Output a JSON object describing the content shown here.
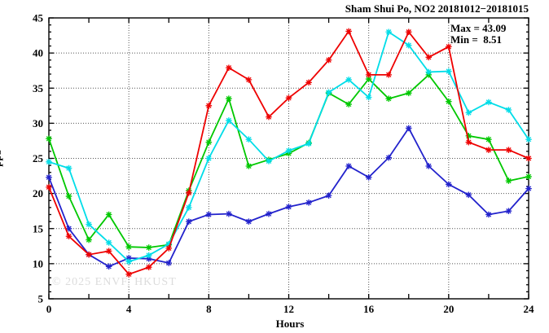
{
  "chart_data": {
    "type": "line",
    "title": "Sham Shui Po, NO2 20181012−20181015",
    "xlabel": "Hours",
    "ylabel": "ppb",
    "xlim": [
      0,
      24
    ],
    "ylim": [
      5,
      45
    ],
    "xticks_labeled": [
      0,
      4,
      8,
      12,
      16,
      20,
      24
    ],
    "xtick_minor_step": 2,
    "yticks_labeled": [
      5,
      10,
      15,
      20,
      25,
      30,
      35,
      40,
      45
    ],
    "ytick_minor_step": 1,
    "x_gridlines": [
      4,
      8,
      12,
      16,
      20
    ],
    "y_gridlines": [
      10,
      15,
      20,
      25,
      30,
      35,
      40
    ],
    "grid": "dotted",
    "legend": "none",
    "x": [
      0,
      1,
      2,
      3,
      4,
      5,
      6,
      7,
      8,
      9,
      10,
      11,
      12,
      13,
      14,
      15,
      16,
      17,
      18,
      19,
      20,
      21,
      22,
      23,
      24
    ],
    "series": [
      {
        "name": "blue",
        "color": "#2222cc",
        "values": [
          22.3,
          15.0,
          11.3,
          9.6,
          10.8,
          10.7,
          10.1,
          16.0,
          17.0,
          17.1,
          16.0,
          17.1,
          18.1,
          18.7,
          19.7,
          23.9,
          22.3,
          25.1,
          29.3,
          23.9,
          21.3,
          19.8,
          17.0,
          17.5,
          20.7
        ]
      },
      {
        "name": "green",
        "color": "#00c800",
        "values": [
          27.8,
          19.6,
          13.4,
          17.0,
          12.4,
          12.3,
          12.7,
          20.4,
          27.3,
          33.5,
          23.9,
          24.8,
          25.7,
          27.2,
          34.3,
          32.7,
          36.3,
          33.5,
          34.3,
          36.9,
          33.1,
          28.2,
          27.7,
          21.8,
          22.4
        ]
      },
      {
        "name": "cyan",
        "color": "#00dde8",
        "values": [
          24.5,
          23.6,
          15.6,
          13.0,
          10.3,
          11.2,
          12.8,
          18.0,
          25.0,
          30.4,
          27.7,
          24.6,
          26.1,
          27.1,
          34.4,
          36.2,
          33.7,
          43.0,
          41.1,
          37.3,
          37.4,
          31.5,
          33.0,
          31.9,
          27.7
        ]
      },
      {
        "name": "red",
        "color": "#ee0000",
        "values": [
          20.9,
          13.9,
          11.3,
          11.8,
          8.5,
          9.5,
          12.2,
          20.1,
          32.5,
          37.9,
          36.2,
          30.9,
          33.6,
          35.8,
          39.0,
          43.1,
          36.9,
          36.9,
          43.0,
          39.4,
          40.9,
          27.3,
          26.2,
          26.2,
          25.0
        ]
      }
    ],
    "annotations": {
      "max_label": "Max = 43.09",
      "min_label": "Min =  8.51"
    },
    "watermark": "© 2025 ENVF, HKUST",
    "stats": {
      "max": 43.09,
      "min": 8.51
    }
  }
}
